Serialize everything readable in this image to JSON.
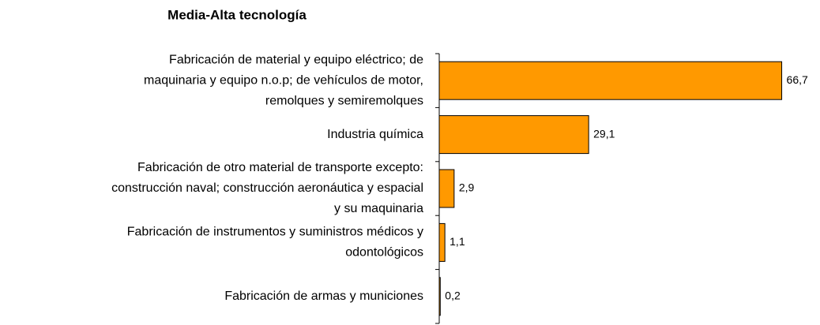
{
  "chart_data": {
    "type": "bar",
    "orientation": "horizontal",
    "title": "Media-Alta tecnología",
    "categories": [
      [
        "Fabricación de material y equipo eléctrico; de",
        "maquinaria y equipo n.o.p; de vehículos de motor,",
        "remolques y semiremolques"
      ],
      [
        "Industria química"
      ],
      [
        "Fabricación de otro material de transporte excepto:",
        "construcción naval; construcción aeronáutica y espacial",
        "y su maquinaria"
      ],
      [
        "Fabricación de instrumentos y suministros médicos y",
        "odontológicos"
      ],
      [
        "Fabricación de armas y municiones"
      ]
    ],
    "values": [
      66.7,
      29.1,
      2.9,
      1.1,
      0.2
    ],
    "value_labels": [
      "66,7",
      "29,1",
      "2,9",
      "1,1",
      "0,2"
    ],
    "color": "#ff9900",
    "xlim": [
      0,
      70
    ]
  }
}
